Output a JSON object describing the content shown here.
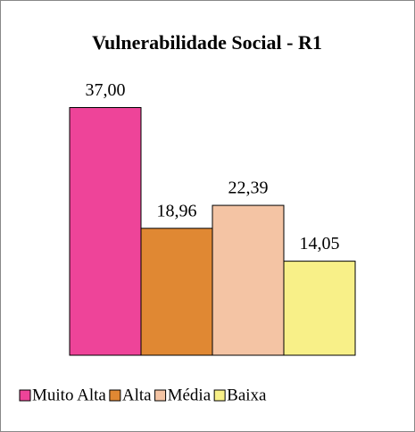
{
  "chart_data": {
    "type": "bar",
    "title": "Vulnerabilidade Social - R1",
    "series": [
      {
        "name": "Muito Alta",
        "color": "#ee4499",
        "values": [
          37
        ],
        "value_labels": [
          "37,00"
        ]
      },
      {
        "name": "Alta",
        "color": "#e08833",
        "values": [
          18.96
        ],
        "value_labels": [
          "18,96"
        ]
      },
      {
        "name": "Média",
        "color": "#f4c4a4",
        "values": [
          22.39
        ],
        "value_labels": [
          "22,39"
        ]
      },
      {
        "name": "Baixa",
        "color": "#f8f088",
        "values": [
          14.05
        ],
        "value_labels": [
          "14,05"
        ]
      }
    ],
    "ylim": [
      0,
      40
    ],
    "legend": "bottom"
  }
}
